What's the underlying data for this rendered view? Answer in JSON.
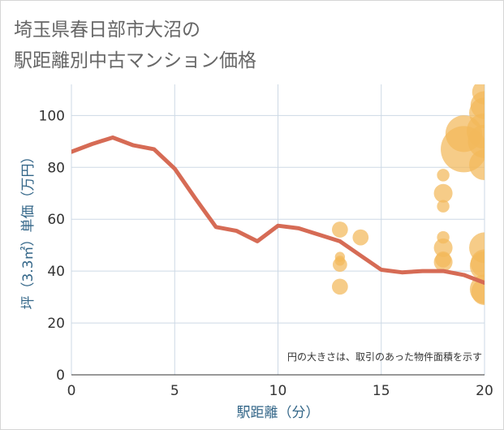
{
  "title": {
    "line1": "埼玉県春日部市大沼の",
    "line2": "駅距離別中古マンション価格"
  },
  "colors": {
    "line": "#d66b55",
    "bubble": "#f2b95a",
    "grid": "#cdd9e5",
    "axis_text": "#333333",
    "axis_title": "#336688",
    "plot_bg": "#ffffff"
  },
  "chart_data": {
    "type": "scatter",
    "title": "埼玉県春日部市大沼の駅距離別中古マンション価格",
    "xlabel": "駅距離（分）",
    "ylabel": "坪（3.3㎡）単価（万円）",
    "xlim": [
      0,
      20
    ],
    "ylim": [
      0,
      112
    ],
    "x_ticks": [
      0,
      5,
      10,
      15,
      20
    ],
    "y_ticks": [
      0,
      20,
      40,
      60,
      80,
      100
    ],
    "grid": true,
    "note": "円の大きさは、取引のあった物件面積を示す",
    "series": [
      {
        "name": "average_line",
        "kind": "line",
        "points": [
          {
            "x": 0,
            "y": 86
          },
          {
            "x": 1,
            "y": 89
          },
          {
            "x": 2,
            "y": 91.5
          },
          {
            "x": 3,
            "y": 88.5
          },
          {
            "x": 4,
            "y": 87
          },
          {
            "x": 5,
            "y": 79.5
          },
          {
            "x": 6,
            "y": 68
          },
          {
            "x": 7,
            "y": 57
          },
          {
            "x": 8,
            "y": 55.5
          },
          {
            "x": 9,
            "y": 51.5
          },
          {
            "x": 10,
            "y": 57.5
          },
          {
            "x": 11,
            "y": 56.5
          },
          {
            "x": 12,
            "y": 54
          },
          {
            "x": 13,
            "y": 51.5
          },
          {
            "x": 14,
            "y": 46
          },
          {
            "x": 15,
            "y": 40.5
          },
          {
            "x": 16,
            "y": 39.5
          },
          {
            "x": 17,
            "y": 40
          },
          {
            "x": 18,
            "y": 40
          },
          {
            "x": 19,
            "y": 38.5
          },
          {
            "x": 20,
            "y": 35.5
          }
        ]
      },
      {
        "name": "transactions",
        "kind": "bubble",
        "points": [
          {
            "x": 13,
            "y": 56,
            "size": 2
          },
          {
            "x": 13,
            "y": 45.5,
            "size": 0.5
          },
          {
            "x": 13,
            "y": 44,
            "size": 0.5
          },
          {
            "x": 13,
            "y": 42.5,
            "size": 1.5
          },
          {
            "x": 13,
            "y": 34,
            "size": 2
          },
          {
            "x": 14,
            "y": 53,
            "size": 2
          },
          {
            "x": 18,
            "y": 77,
            "size": 1
          },
          {
            "x": 18,
            "y": 70,
            "size": 3
          },
          {
            "x": 18,
            "y": 65,
            "size": 1
          },
          {
            "x": 18,
            "y": 53,
            "size": 1
          },
          {
            "x": 18,
            "y": 49,
            "size": 3
          },
          {
            "x": 18,
            "y": 44.5,
            "size": 2
          },
          {
            "x": 18,
            "y": 43.5,
            "size": 3
          },
          {
            "x": 19,
            "y": 93,
            "size": 15
          },
          {
            "x": 19,
            "y": 87,
            "size": 25
          },
          {
            "x": 20,
            "y": 109,
            "size": 6
          },
          {
            "x": 20,
            "y": 104,
            "size": 8
          },
          {
            "x": 20,
            "y": 101,
            "size": 10
          },
          {
            "x": 20,
            "y": 94,
            "size": 14
          },
          {
            "x": 20,
            "y": 90,
            "size": 12
          },
          {
            "x": 20,
            "y": 81,
            "size": 10
          },
          {
            "x": 20,
            "y": 49,
            "size": 10
          },
          {
            "x": 20,
            "y": 43,
            "size": 8
          },
          {
            "x": 20,
            "y": 42,
            "size": 9
          },
          {
            "x": 20,
            "y": 33,
            "size": 9
          },
          {
            "x": 20,
            "y": 32,
            "size": 7
          }
        ]
      }
    ]
  }
}
